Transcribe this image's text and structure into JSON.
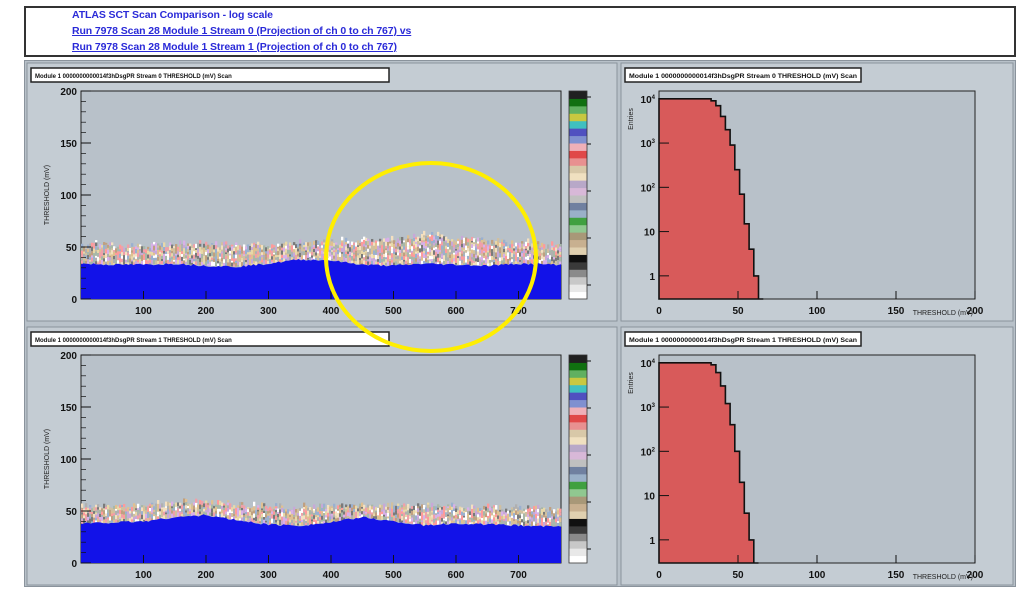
{
  "header": {
    "line1": "ATLAS SCT Scan Comparison - log scale",
    "line2": "Run 7978   Scan 28   Module 1   Stream 0 (Projection of ch 0 to ch 767) vs",
    "line3": "Run 7978   Scan 28   Module 1   Stream 1 (Projection of ch 0 to ch 767)"
  },
  "colors": {
    "canvas": "#b8c1c9",
    "frame": "#c4ccd3",
    "fill_blue": "#1212e8",
    "hist_fill": "#d85a5a",
    "highlight_ring": "#ffee00"
  },
  "chart_data": [
    {
      "type": "heatmap",
      "title": "Module 1 0000000000014f3hDsgPR Stream 0 THRESHOLD (mV) Scan",
      "ylabel": "THRESHOLD (mV)",
      "xlim": [
        0,
        768
      ],
      "ylim": [
        0,
        200
      ],
      "xticks": [
        100,
        200,
        300,
        400,
        500,
        600,
        700
      ],
      "yticks": [
        0,
        50,
        100,
        150,
        200
      ],
      "log_color_scale": true,
      "baseline_profile": {
        "x": [
          0,
          50,
          100,
          150,
          200,
          250,
          300,
          350,
          400,
          450,
          500,
          550,
          600,
          650,
          700,
          768
        ],
        "y": [
          34,
          33,
          33,
          34,
          32,
          31,
          34,
          38,
          37,
          33,
          32,
          34,
          33,
          32,
          34,
          33
        ]
      },
      "noise_top_profile": {
        "x": [
          0,
          100,
          200,
          300,
          400,
          500,
          550,
          600,
          700,
          768
        ],
        "y": [
          52,
          50,
          52,
          50,
          53,
          56,
          60,
          57,
          52,
          50
        ]
      }
    },
    {
      "type": "bar",
      "title": "Module 1 0000000000014f3hDsgPR Stream 0 THRESHOLD (mV) Scan",
      "xlabel": "THRESHOLD (mV)",
      "ylabel": "Entries",
      "xlim": [
        0,
        200
      ],
      "log_y": true,
      "ylim": [
        0.3,
        15000
      ],
      "xticks": [
        0,
        50,
        100,
        150,
        200
      ],
      "yticks": [
        "1",
        "10",
        "10^2",
        "10^3",
        "10^4"
      ],
      "step_profile": {
        "x": [
          0,
          30,
          33,
          36,
          39,
          42,
          45,
          48,
          51,
          54,
          57,
          60,
          63
        ],
        "y": [
          10000,
          10000,
          9000,
          7000,
          4000,
          2000,
          900,
          250,
          70,
          15,
          4,
          1,
          0.3
        ]
      }
    },
    {
      "type": "heatmap",
      "title": "Module 1 0000000000014f3hDsgPR Stream 1 THRESHOLD (mV) Scan",
      "ylabel": "THRESHOLD (mV)",
      "xlim": [
        0,
        768
      ],
      "ylim": [
        0,
        200
      ],
      "xticks": [
        100,
        200,
        300,
        400,
        500,
        600,
        700
      ],
      "yticks": [
        0,
        50,
        100,
        150,
        200
      ],
      "log_color_scale": true,
      "baseline_profile": {
        "x": [
          0,
          50,
          100,
          150,
          200,
          250,
          300,
          350,
          400,
          450,
          500,
          550,
          600,
          650,
          700,
          768
        ],
        "y": [
          38,
          39,
          40,
          44,
          46,
          41,
          37,
          36,
          39,
          44,
          40,
          36,
          38,
          37,
          36,
          35
        ]
      },
      "noise_top_profile": {
        "x": [
          0,
          100,
          200,
          300,
          400,
          500,
          600,
          700,
          768
        ],
        "y": [
          53,
          54,
          58,
          52,
          53,
          55,
          52,
          52,
          51
        ]
      }
    },
    {
      "type": "bar",
      "title": "Module 1 0000000000014f3hDsgPR Stream 1 THRESHOLD (mV) Scan",
      "xlabel": "THRESHOLD (mV)",
      "ylabel": "Entries",
      "xlim": [
        0,
        200
      ],
      "log_y": true,
      "ylim": [
        0.3,
        15000
      ],
      "xticks": [
        0,
        50,
        100,
        150,
        200
      ],
      "yticks": [
        "1",
        "10",
        "10^2",
        "10^3",
        "10^4"
      ],
      "step_profile": {
        "x": [
          0,
          30,
          33,
          36,
          39,
          42,
          45,
          48,
          51,
          54,
          57,
          60
        ],
        "y": [
          10000,
          10000,
          9000,
          6000,
          3000,
          1200,
          400,
          100,
          20,
          4,
          1,
          0.3
        ]
      }
    }
  ]
}
